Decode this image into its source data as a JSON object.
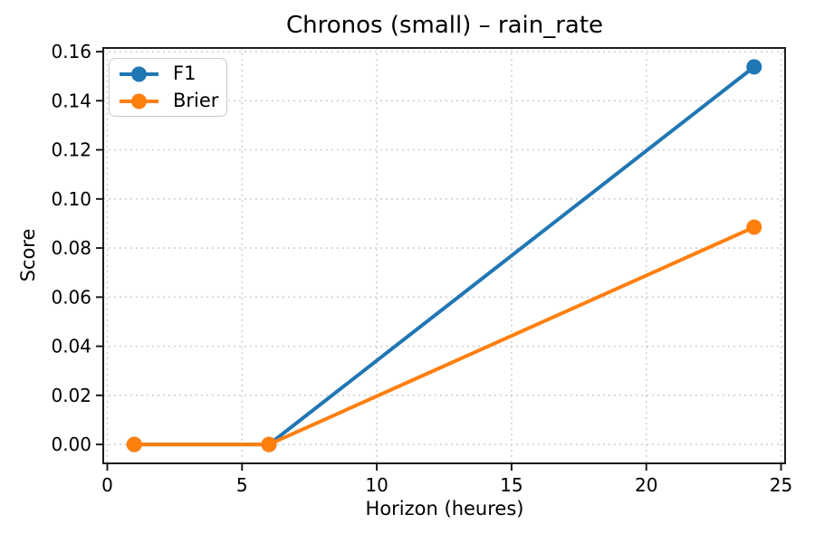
{
  "chart_data": {
    "type": "line",
    "title": "Chronos (small) – rain_rate",
    "xlabel": "Horizon (heures)",
    "ylabel": "Score",
    "x": [
      1,
      6,
      24
    ],
    "series": [
      {
        "name": "F1",
        "color": "#1f77b4",
        "values": [
          0.0,
          0.0,
          0.1538
        ]
      },
      {
        "name": "Brier",
        "color": "#ff7f0e",
        "values": [
          0.0,
          0.0,
          0.0885
        ]
      }
    ],
    "xlim": [
      -0.15,
      25.15
    ],
    "ylim": [
      -0.0077,
      0.1615
    ],
    "xticks": [
      0,
      5,
      10,
      15,
      20,
      25
    ],
    "xtick_labels": [
      "0",
      "5",
      "10",
      "15",
      "20",
      "25"
    ],
    "yticks": [
      0.0,
      0.02,
      0.04,
      0.06,
      0.08,
      0.1,
      0.12,
      0.14,
      0.16
    ],
    "ytick_labels": [
      "0.00",
      "0.02",
      "0.04",
      "0.06",
      "0.08",
      "0.10",
      "0.12",
      "0.14",
      "0.16"
    ],
    "grid": true,
    "grid_linestyle": "dotted",
    "legend_position": "upper left",
    "legend_labels": [
      "F1",
      "Brier"
    ],
    "colors": {
      "background": "#ffffff",
      "grid": "#cccccc",
      "spine": "#1c1c1c",
      "text": "#000000"
    }
  }
}
